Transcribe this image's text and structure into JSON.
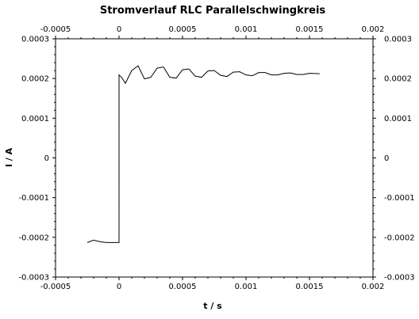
{
  "chart_data": {
    "type": "line",
    "title": "Stromverlauf RLC Parallelschwingkreis",
    "xlabel": "t / s",
    "ylabel": "I / A",
    "xlim": [
      -0.0005,
      0.002
    ],
    "ylim": [
      -0.0003,
      0.0003
    ],
    "x_ticks": [
      "-0.0005",
      "0",
      "0.0005",
      "0.001",
      "0.0015",
      "0.002"
    ],
    "x_tick_values": [
      -0.0005,
      0,
      0.0005,
      0.001,
      0.0015,
      0.002
    ],
    "y_ticks": [
      "0.0003",
      "0.0002",
      "0.0001",
      "0",
      "-0.0001",
      "-0.0002",
      "-0.0003"
    ],
    "y_tick_values": [
      0.0003,
      0.0002,
      0.0001,
      0,
      -0.0001,
      -0.0002,
      -0.0003
    ],
    "grid": false,
    "series": [
      {
        "color": "#000000",
        "x": [
          -0.00025,
          -0.0002,
          -0.00015,
          -0.0001,
          -5e-05,
          -1e-05,
          0.0,
          1e-07,
          2e-05,
          5e-05,
          0.0001,
          0.00015,
          0.0002,
          0.00025,
          0.0003,
          0.00035,
          0.0004,
          0.00045,
          0.0005,
          0.00055,
          0.0006,
          0.00065,
          0.0007,
          0.00075,
          0.0008,
          0.00085,
          0.0009,
          0.00095,
          0.001,
          0.00105,
          0.0011,
          0.00115,
          0.0012,
          0.00125,
          0.0013,
          0.00135,
          0.0014,
          0.00145,
          0.0015,
          0.00158
        ],
        "y": [
          -0.000213,
          -0.000207,
          -0.000211,
          -0.000213,
          -0.000213,
          -0.000213,
          -0.000213,
          0.000209,
          0.000203,
          0.000188,
          0.00022,
          0.000232,
          0.000199,
          0.000203,
          0.000226,
          0.000229,
          0.000203,
          0.000201,
          0.000222,
          0.000224,
          0.000206,
          0.000203,
          0.000219,
          0.00022,
          0.000208,
          0.000205,
          0.000216,
          0.000217,
          0.000209,
          0.000207,
          0.000215,
          0.000215,
          0.000209,
          0.000209,
          0.000213,
          0.000214,
          0.00021,
          0.00021,
          0.000213,
          0.000212
        ]
      }
    ]
  }
}
